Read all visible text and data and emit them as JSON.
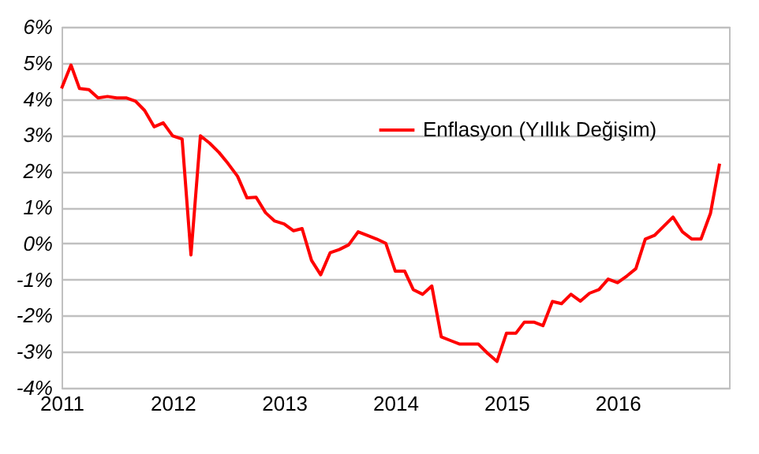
{
  "chart_data": {
    "type": "line",
    "x": [
      "2011-01",
      "2011-02",
      "2011-03",
      "2011-04",
      "2011-05",
      "2011-06",
      "2011-07",
      "2011-08",
      "2011-09",
      "2011-10",
      "2011-11",
      "2011-12",
      "2012-01",
      "2012-02",
      "2012-03",
      "2012-04",
      "2012-05",
      "2012-06",
      "2012-07",
      "2012-08",
      "2012-09",
      "2012-10",
      "2012-11",
      "2012-12",
      "2013-01",
      "2013-02",
      "2013-03",
      "2013-04",
      "2013-05",
      "2013-06",
      "2013-07",
      "2013-08",
      "2013-09",
      "2013-10",
      "2013-11",
      "2013-12",
      "2014-01",
      "2014-02",
      "2014-03",
      "2014-04",
      "2014-05",
      "2014-06",
      "2014-07",
      "2014-08",
      "2014-09",
      "2014-10",
      "2014-11",
      "2014-12",
      "2015-01",
      "2015-02",
      "2015-03",
      "2015-04",
      "2015-05",
      "2015-06",
      "2015-07",
      "2015-08",
      "2015-09",
      "2015-10",
      "2015-11",
      "2015-12",
      "2016-01",
      "2016-02",
      "2016-03",
      "2016-04",
      "2016-05",
      "2016-06",
      "2016-07",
      "2016-08",
      "2016-09",
      "2016-10",
      "2016-11",
      "2016-12"
    ],
    "series": [
      {
        "name": "Enflasyon (Yıllık Değişim)",
        "color": "#ff0000",
        "values": [
          4.29,
          4.94,
          4.29,
          4.26,
          4.03,
          4.07,
          4.03,
          4.03,
          3.94,
          3.68,
          3.23,
          3.34,
          2.98,
          2.89,
          -0.32,
          2.98,
          2.78,
          2.52,
          2.21,
          1.86,
          1.26,
          1.28,
          0.85,
          0.62,
          0.54,
          0.35,
          0.41,
          -0.47,
          -0.87,
          -0.26,
          -0.17,
          -0.04,
          0.32,
          0.22,
          0.12,
          0.0,
          -0.77,
          -0.77,
          -1.28,
          -1.41,
          -1.18,
          -2.59,
          -2.69,
          -2.79,
          -2.79,
          -2.79,
          -3.05,
          -3.27,
          -2.49,
          -2.49,
          -2.18,
          -2.18,
          -2.28,
          -1.61,
          -1.67,
          -1.41,
          -1.6,
          -1.38,
          -1.28,
          -0.99,
          -1.09,
          -0.9,
          -0.7,
          0.12,
          0.22,
          0.48,
          0.73,
          0.32,
          0.12,
          0.12,
          0.83,
          2.21
        ]
      }
    ],
    "xlim": [
      "2011-01-01",
      "2017-01-01"
    ],
    "xticks": [
      "2011",
      "2012",
      "2013",
      "2014",
      "2015",
      "2016"
    ],
    "ylim": [
      -4,
      6
    ],
    "yticks": [
      {
        "value": -4,
        "label": "-4%"
      },
      {
        "value": -3,
        "label": "-3%"
      },
      {
        "value": -2,
        "label": "-2%"
      },
      {
        "value": -1,
        "label": "-1%"
      },
      {
        "value": 0,
        "label": "0%"
      },
      {
        "value": 1,
        "label": "1%"
      },
      {
        "value": 2,
        "label": "2%"
      },
      {
        "value": 3,
        "label": "3%"
      },
      {
        "value": 4,
        "label": "4%"
      },
      {
        "value": 5,
        "label": "5%"
      },
      {
        "value": 6,
        "label": "6%"
      }
    ],
    "grid": "y",
    "legend": "top right",
    "marker": "none",
    "line_style": "solid"
  }
}
